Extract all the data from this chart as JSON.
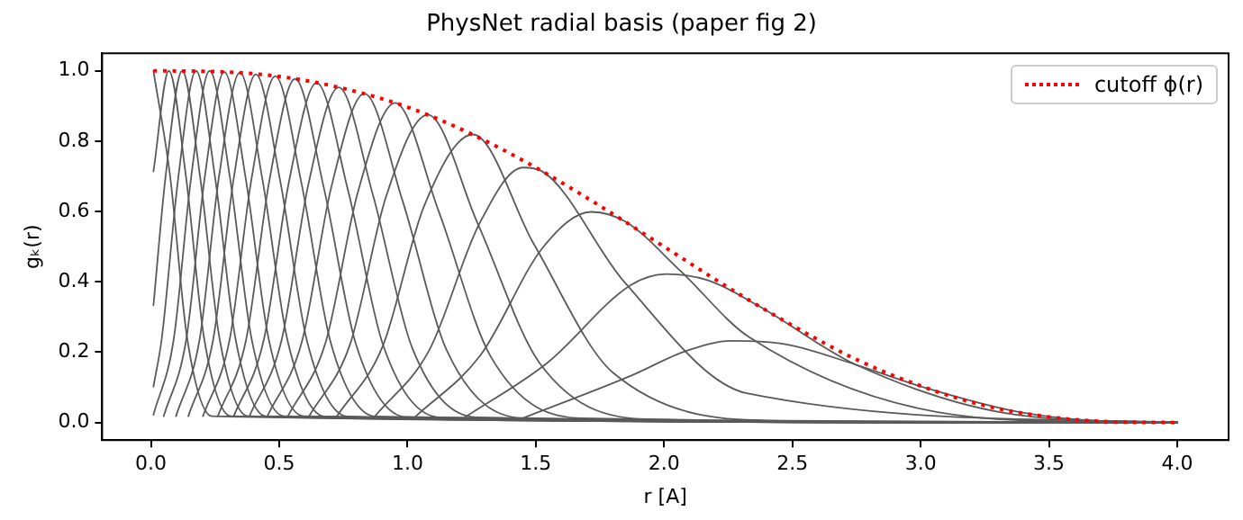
{
  "chart_data": {
    "type": "line",
    "title": "PhysNet radial basis (paper fig 2)",
    "xlabel": "r [A]",
    "ylabel": "gₖ(r)",
    "xlim": [
      -0.19,
      4.2
    ],
    "ylim": [
      -0.05,
      1.05
    ],
    "xticks": [
      {
        "value": 0,
        "label": "0.0"
      },
      {
        "value": 0.5,
        "label": "0.5"
      },
      {
        "value": 1,
        "label": "1.0"
      },
      {
        "value": 1.5,
        "label": "1.5"
      },
      {
        "value": 2,
        "label": "2.0"
      },
      {
        "value": 2.5,
        "label": "2.5"
      },
      {
        "value": 3,
        "label": "3.0"
      },
      {
        "value": 3.5,
        "label": "3.5"
      },
      {
        "value": 4,
        "label": "4.0"
      }
    ],
    "yticks": [
      {
        "value": 0,
        "label": "0.0"
      },
      {
        "value": 0.2,
        "label": "0.2"
      },
      {
        "value": 0.4,
        "label": "0.4"
      },
      {
        "value": 0.6,
        "label": "0.6"
      },
      {
        "value": 0.8,
        "label": "0.8"
      },
      {
        "value": 1,
        "label": "1.0"
      }
    ],
    "legend": "top right",
    "marker": "none",
    "series": [
      {
        "color": "#5a5a5a",
        "x": [
          0.01,
          0.075,
          0.142,
          0.238,
          4
        ],
        "values": [
          1.0,
          0.7,
          0.237,
          0.018,
          0
        ]
      },
      {
        "color": "#5a5a5a",
        "x": [
          0.01,
          0.07,
          0.137,
          0.208,
          0.312,
          4
        ],
        "values": [
          0.714,
          1.0,
          0.698,
          0.237,
          0.018,
          0
        ]
      },
      {
        "color": "#5a5a5a",
        "x": [
          0.01,
          0.057,
          0.122,
          0.192,
          0.268,
          0.378,
          4
        ],
        "values": [
          0.333,
          0.698,
          1.0,
          0.698,
          0.237,
          0.018,
          0
        ]
      },
      {
        "color": "#5a5a5a",
        "x": [
          0.01,
          0.042,
          0.107,
          0.176,
          0.25,
          0.33,
          0.448,
          4
        ],
        "values": [
          0.102,
          0.237,
          0.698,
          1.0,
          0.698,
          0.237,
          0.018,
          0
        ]
      },
      {
        "color": "#5a5a5a",
        "x": [
          0.01,
          0.089,
          0.157,
          0.229,
          0.308,
          0.393,
          0.519,
          4
        ],
        "values": [
          0.022,
          0.237,
          0.698,
          1.0,
          0.697,
          0.236,
          0.018,
          0
        ]
      },
      {
        "color": "#5a5a5a",
        "x": [
          0.05,
          0.138,
          0.21,
          0.286,
          0.37,
          0.46,
          0.596,
          4
        ],
        "values": [
          0.018,
          0.237,
          0.698,
          0.997,
          0.692,
          0.234,
          0.018,
          0
        ]
      },
      {
        "color": "#5a5a5a",
        "x": [
          0.098,
          0.19,
          0.265,
          0.347,
          0.435,
          0.533,
          0.679,
          4
        ],
        "values": [
          0.018,
          0.237,
          0.697,
          0.995,
          0.69,
          0.232,
          0.017,
          0
        ]
      },
      {
        "color": "#5a5a5a",
        "x": [
          0.146,
          0.243,
          0.323,
          0.409,
          0.504,
          0.609,
          0.768,
          4
        ],
        "values": [
          0.018,
          0.237,
          0.695,
          0.99,
          0.687,
          0.23,
          0.017,
          0
        ]
      },
      {
        "color": "#5a5a5a",
        "x": [
          0.203,
          0.307,
          0.392,
          0.485,
          0.587,
          0.701,
          0.877,
          4
        ],
        "values": [
          0.018,
          0.236,
          0.692,
          0.985,
          0.68,
          0.227,
          0.017,
          0
        ]
      },
      {
        "color": "#5a5a5a",
        "x": [
          0.261,
          0.371,
          0.462,
          0.562,
          0.673,
          0.799,
          0.994,
          4
        ],
        "values": [
          0.018,
          0.235,
          0.689,
          0.977,
          0.671,
          0.223,
          0.016,
          0
        ]
      },
      {
        "color": "#5a5a5a",
        "x": [
          0.323,
          0.44,
          0.538,
          0.646,
          0.768,
          0.906,
          1.127,
          4
        ],
        "values": [
          0.018,
          0.235,
          0.684,
          0.966,
          0.661,
          0.218,
          0.015,
          0
        ]
      },
      {
        "color": "#5a5a5a",
        "x": [
          0.384,
          0.509,
          0.614,
          0.732,
          0.865,
          1.019,
          1.269,
          4
        ],
        "values": [
          0.018,
          0.233,
          0.678,
          0.953,
          0.648,
          0.211,
          0.015,
          0
        ]
      },
      {
        "color": "#5a5a5a",
        "x": [
          0.454,
          0.589,
          0.703,
          0.832,
          0.981,
          1.155,
          1.448,
          4
        ],
        "values": [
          0.018,
          0.231,
          0.669,
          0.935,
          0.63,
          0.202,
          0.013,
          0
        ]
      },
      {
        "color": "#5a5a5a",
        "x": [
          0.534,
          0.681,
          0.807,
          0.952,
          1.121,
          1.324,
          1.682,
          4
        ],
        "values": [
          0.018,
          0.228,
          0.656,
          0.909,
          0.602,
          0.188,
          0.012,
          0
        ]
      },
      {
        "color": "#5a5a5a",
        "x": [
          0.616,
          0.777,
          0.916,
          1.079,
          1.273,
          1.514,
          1.966,
          4
        ],
        "values": [
          0.017,
          0.224,
          0.641,
          0.875,
          0.567,
          0.17,
          0.009,
          0
        ]
      },
      {
        "color": "#5a5a5a",
        "x": [
          0.724,
          0.904,
          1.064,
          1.255,
          1.492,
          1.802,
          2.465,
          4
        ],
        "values": [
          0.017,
          0.218,
          0.614,
          0.819,
          0.508,
          0.141,
          0.005,
          0
        ]
      },
      {
        "color": "#5a5a5a",
        "x": [
          0.872,
          1.085,
          1.28,
          1.45,
          1.523,
          1.845,
          2.323,
          4
        ],
        "values": [
          0.017,
          0.206,
          0.565,
          0.725,
          0.715,
          0.4,
          0.083,
          0
        ]
      },
      {
        "color": "#5a5a5a",
        "x": [
          1.03,
          1.284,
          1.528,
          1.716,
          1.852,
          2.064,
          2.333,
          3.297,
          4
        ],
        "values": [
          0.016,
          0.191,
          0.498,
          0.599,
          0.57,
          0.431,
          0.242,
          0.01,
          0
        ]
      },
      {
        "color": "#5a5a5a",
        "x": [
          1.224,
          1.542,
          1.871,
          2.01,
          2.172,
          2.365,
          2.749,
          3.381,
          4
        ],
        "values": [
          0.015,
          0.168,
          0.391,
          0.422,
          0.404,
          0.333,
          0.164,
          0.021,
          0
        ]
      },
      {
        "color": "#5a5a5a",
        "x": [
          1.452,
          1.871,
          2.088,
          2.263,
          2.477,
          2.749,
          3.016,
          3.381,
          3.73,
          4
        ],
        "values": [
          0.013,
          0.133,
          0.204,
          0.232,
          0.222,
          0.164,
          0.099,
          0.03,
          0.003,
          0
        ]
      },
      {
        "name": "cutoff ϕ(r)",
        "color": "#ff0000",
        "line_style": "dotted",
        "x": [
          0.01,
          0.25,
          0.5,
          0.75,
          1,
          1.25,
          1.5,
          1.75,
          2,
          2.25,
          2.5,
          2.75,
          3,
          3.25,
          3.5,
          3.75,
          4
        ],
        "values": [
          1.0,
          0.998,
          0.984,
          0.95,
          0.897,
          0.82,
          0.725,
          0.616,
          0.5,
          0.384,
          0.276,
          0.179,
          0.104,
          0.048,
          0.016,
          0.002,
          0
        ]
      }
    ]
  }
}
